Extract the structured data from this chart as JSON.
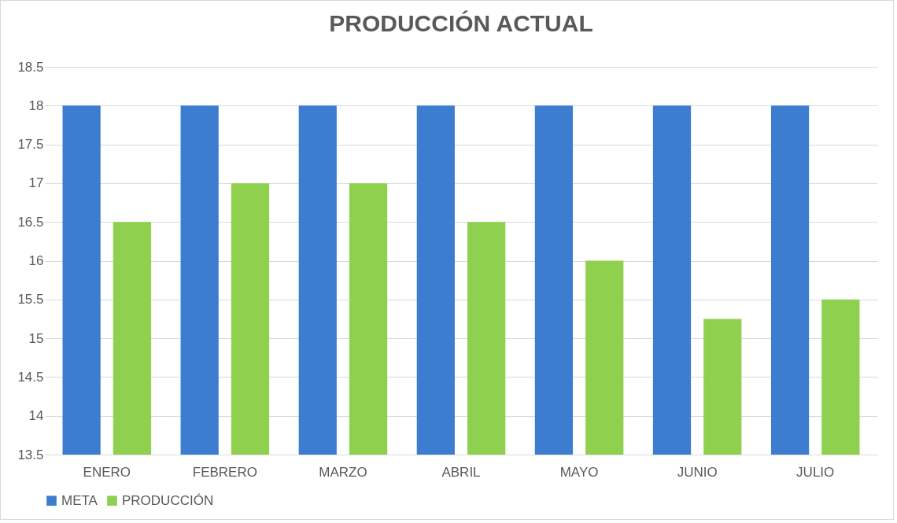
{
  "chart_data": {
    "type": "bar",
    "title": "PRODUCCIÓN ACTUAL",
    "categories": [
      "ENERO",
      "FEBRERO",
      "MARZO",
      "ABRIL",
      "MAYO",
      "JUNIO",
      "JULIO"
    ],
    "series": [
      {
        "name": "META",
        "color": "#3c7dd0",
        "values": [
          18,
          18,
          18,
          18,
          18,
          18,
          18
        ]
      },
      {
        "name": "PRODUCCIÓN",
        "color": "#8fd14f",
        "values": [
          16.5,
          17,
          17,
          16.5,
          16,
          15.25,
          15.5
        ]
      }
    ],
    "ylim": [
      13.5,
      18.5
    ],
    "yticks": [
      13.5,
      14,
      14.5,
      15,
      15.5,
      16,
      16.5,
      17,
      17.5,
      18,
      18.5
    ],
    "grid": "y",
    "legend": "bottom"
  }
}
